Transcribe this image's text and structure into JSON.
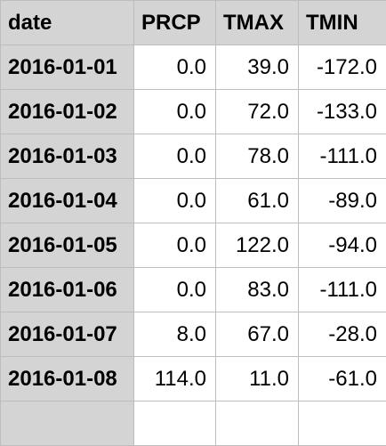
{
  "table": {
    "columns": [
      "date",
      "PRCP",
      "TMAX",
      "TMIN"
    ],
    "rows": [
      {
        "date": "2016-01-01",
        "PRCP": "0.0",
        "TMAX": "39.0",
        "TMIN": "-172.0"
      },
      {
        "date": "2016-01-02",
        "PRCP": "0.0",
        "TMAX": "72.0",
        "TMIN": "-133.0"
      },
      {
        "date": "2016-01-03",
        "PRCP": "0.0",
        "TMAX": "78.0",
        "TMIN": "-111.0"
      },
      {
        "date": "2016-01-04",
        "PRCP": "0.0",
        "TMAX": "61.0",
        "TMIN": "-89.0"
      },
      {
        "date": "2016-01-05",
        "PRCP": "0.0",
        "TMAX": "122.0",
        "TMIN": "-94.0"
      },
      {
        "date": "2016-01-06",
        "PRCP": "0.0",
        "TMAX": "83.0",
        "TMIN": "-111.0"
      },
      {
        "date": "2016-01-07",
        "PRCP": "8.0",
        "TMAX": "67.0",
        "TMIN": "-28.0"
      },
      {
        "date": "2016-01-08",
        "PRCP": "114.0",
        "TMAX": "11.0",
        "TMIN": "-61.0"
      },
      {
        "date": "",
        "PRCP": "",
        "TMAX": "",
        "TMIN": ""
      }
    ]
  },
  "colors": {
    "header_bg": "#d4d4d4",
    "grid_line": "#bdbdbd",
    "cell_bg": "#ffffff"
  }
}
